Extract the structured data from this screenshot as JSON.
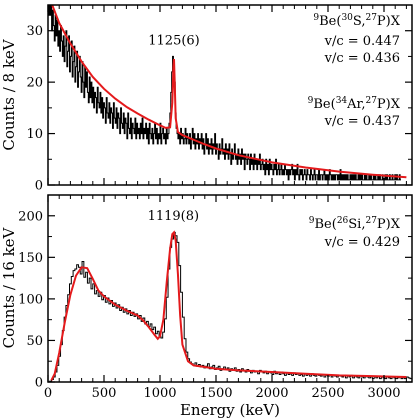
{
  "chart_data": [
    {
      "type": "line",
      "panel": "top",
      "xlim": [
        0,
        3250
      ],
      "ylim": [
        0,
        35
      ],
      "x_ticks": [
        0,
        500,
        1000,
        1500,
        2000,
        2500,
        3000
      ],
      "x_tick_labels": [
        "",
        "",
        "",
        "",
        "",
        "",
        ""
      ],
      "y_ticks": [
        0,
        10,
        20,
        30
      ],
      "y_tick_labels": [
        "0",
        "10",
        "20",
        "30"
      ],
      "ylabel": "Counts / 8 keV",
      "xlabel": "",
      "grid": false,
      "peak_label": {
        "text": "1125(6)",
        "x": 1125,
        "y": 25
      },
      "annotation_lines": [
        {
          "html": "<tspan baseline-shift='super' font-size='9'>9</tspan>Be(<tspan baseline-shift='super' font-size='9'>30</tspan>S,<tspan baseline-shift='super' font-size='9'>27</tspan>P)X"
        },
        {
          "text": "v/c = 0.447"
        },
        {
          "text": "v/c = 0.436"
        },
        {
          "html": "<tspan baseline-shift='super' font-size='9'>9</tspan>Be(<tspan baseline-shift='super' font-size='9'>34</tspan>Ar,<tspan baseline-shift='super' font-size='9'>27</tspan>P)X"
        },
        {
          "text": "v/c = 0.437"
        }
      ],
      "fit": {
        "name": "fit",
        "color": "#e41a1c",
        "x": [
          20,
          100,
          200,
          300,
          400,
          500,
          600,
          700,
          800,
          900,
          1000,
          1050,
          1090,
          1110,
          1120,
          1125,
          1130,
          1140,
          1160,
          1200,
          1300,
          1400,
          1500,
          1700,
          2000,
          2300,
          2600,
          2900,
          3200
        ],
        "y": [
          36,
          31.5,
          27.5,
          24,
          21,
          18.7,
          16.8,
          15.2,
          13.9,
          12.7,
          11.6,
          11.1,
          11.2,
          16,
          23,
          24.5,
          21,
          13,
          10.3,
          9.7,
          8.8,
          7.9,
          7.1,
          5.8,
          4.4,
          3.4,
          2.6,
          2.0,
          1.5
        ]
      },
      "histogram": {
        "name": "data",
        "color": "#000000",
        "bin_width": 8,
        "x_start": 0,
        "values": [
          33,
          36,
          33,
          35,
          30,
          34,
          31,
          28,
          33,
          29,
          32,
          27,
          30,
          26,
          31,
          28,
          25,
          29,
          24,
          27,
          30,
          23,
          26,
          29,
          22,
          25,
          28,
          21,
          24,
          27,
          20,
          23,
          26,
          19,
          22,
          25,
          21,
          18,
          24,
          20,
          17,
          23,
          19,
          22,
          18,
          16,
          21,
          17,
          20,
          16,
          19,
          15,
          18,
          17,
          14,
          19,
          16,
          15,
          18,
          14,
          17,
          13,
          16,
          15,
          12,
          17,
          14,
          13,
          16,
          12,
          15,
          14,
          11,
          16,
          13,
          12,
          15,
          11,
          14,
          13,
          10,
          15,
          12,
          11,
          14,
          10,
          13,
          12,
          9,
          14,
          11,
          10,
          13,
          9,
          12,
          11,
          10,
          13,
          9,
          12,
          10,
          11,
          9,
          12,
          10,
          13,
          9,
          11,
          10,
          12,
          9,
          11,
          8,
          12,
          10,
          9,
          11,
          8,
          10,
          12,
          9,
          11,
          8,
          10,
          9,
          12,
          8,
          10,
          11,
          9,
          10,
          8,
          11,
          9,
          10,
          12,
          14,
          18,
          22,
          25,
          24,
          20,
          14,
          11,
          10,
          9,
          10,
          8,
          11,
          9,
          10,
          8,
          9,
          11,
          8,
          10,
          9,
          8,
          10,
          7,
          9,
          11,
          8,
          10,
          7,
          9,
          8,
          10,
          7,
          9,
          8,
          10,
          7,
          9,
          6,
          8,
          10,
          7,
          9,
          6,
          8,
          7,
          9,
          6,
          8,
          7,
          10,
          6,
          8,
          7,
          5,
          8,
          6,
          7,
          9,
          6,
          7,
          5,
          8,
          6,
          7,
          5,
          8,
          6,
          4,
          7,
          5,
          6,
          8,
          5,
          6,
          4,
          7,
          5,
          6,
          4,
          7,
          5,
          6,
          3,
          6,
          5,
          4,
          6,
          5,
          3,
          6,
          4,
          5,
          3,
          6,
          4,
          5,
          3,
          5,
          4,
          6,
          3,
          4,
          5,
          3,
          4,
          2,
          5,
          3,
          4,
          2,
          5,
          3,
          4,
          3,
          2,
          4,
          3,
          5,
          2,
          3,
          4,
          2,
          3,
          4,
          2,
          3,
          2,
          4,
          3,
          2,
          3,
          1,
          3,
          2,
          3,
          4,
          2,
          3,
          1,
          3,
          2,
          4,
          2,
          1,
          3,
          2,
          3,
          1,
          2,
          3,
          2,
          1,
          3,
          2,
          2,
          1,
          3,
          2,
          1,
          2,
          3,
          1,
          2,
          2,
          1,
          3,
          1,
          2,
          2,
          1,
          2,
          3,
          1,
          2,
          1,
          2,
          1,
          3,
          2,
          1,
          2,
          1,
          2,
          1,
          2,
          2,
          1,
          2,
          1,
          3,
          1,
          2,
          1,
          2,
          1,
          2,
          1,
          2,
          1,
          1,
          2,
          1,
          2,
          1,
          2,
          1,
          2,
          1,
          1,
          2,
          1,
          2,
          1,
          2,
          1,
          1,
          2,
          1,
          2,
          1,
          1,
          2,
          1,
          2,
          1,
          1,
          2,
          1,
          2,
          1,
          1,
          2,
          1,
          2,
          1,
          1,
          2,
          1,
          1,
          2,
          1,
          2,
          1,
          1,
          2,
          1,
          1,
          2,
          1,
          1,
          2,
          1,
          2,
          1,
          1,
          2,
          1
        ]
      }
    },
    {
      "type": "line",
      "panel": "bottom",
      "xlim": [
        0,
        3250
      ],
      "ylim": [
        0,
        225
      ],
      "x_ticks": [
        0,
        500,
        1000,
        1500,
        2000,
        2500,
        3000
      ],
      "x_tick_labels": [
        "0",
        "500",
        "1000",
        "1500",
        "2000",
        "2500",
        "3000"
      ],
      "y_ticks": [
        0,
        50,
        100,
        150,
        200
      ],
      "y_tick_labels": [
        "0",
        "50",
        "100",
        "150",
        "200"
      ],
      "ylabel": "Counts / 16 keV",
      "xlabel": "Energy (keV)",
      "grid": false,
      "peak_label": {
        "text": "1119(8)",
        "x": 1119,
        "y": 185
      },
      "annotation_lines": [
        {
          "html": "<tspan baseline-shift='super' font-size='9'>9</tspan>Be(<tspan baseline-shift='super' font-size='9'>26</tspan>Si,<tspan baseline-shift='super' font-size='9'>27</tspan>P)X"
        },
        {
          "text": "v/c = 0.429"
        }
      ],
      "fit": {
        "name": "fit",
        "color": "#e41a1c",
        "x": [
          30,
          60,
          100,
          150,
          200,
          250,
          300,
          350,
          400,
          450,
          500,
          600,
          700,
          800,
          850,
          900,
          950,
          980,
          1000,
          1030,
          1060,
          1090,
          1110,
          1125,
          1140,
          1160,
          1180,
          1200,
          1250,
          1300,
          1400,
          1500,
          1700,
          2000,
          2300,
          2600,
          2900,
          3200
        ],
        "y": [
          2,
          10,
          35,
          72,
          105,
          128,
          138,
          137,
          124,
          110,
          103,
          93,
          86,
          80,
          74,
          66,
          57,
          52,
          55,
          75,
          120,
          160,
          178,
          180,
          170,
          130,
          80,
          45,
          25,
          20,
          18,
          16,
          14,
          12,
          10,
          8,
          7,
          6
        ]
      },
      "histogram": {
        "name": "data",
        "color": "#000000",
        "bin_width": 16,
        "x_start": 0,
        "values": [
          0,
          1,
          3,
          6,
          12,
          20,
          31,
          45,
          62,
          78,
          92,
          105,
          118,
          127,
          134,
          136,
          141,
          138,
          130,
          145,
          126,
          132,
          119,
          125,
          112,
          118,
          106,
          110,
          103,
          108,
          99,
          104,
          96,
          101,
          94,
          98,
          91,
          95,
          89,
          93,
          86,
          90,
          84,
          88,
          82,
          86,
          80,
          84,
          79,
          82,
          76,
          80,
          73,
          77,
          70,
          73,
          67,
          70,
          63,
          66,
          58,
          61,
          55,
          53,
          60,
          76,
          102,
          136,
          162,
          172,
          180,
          176,
          168,
          140,
          108,
          78,
          52,
          36,
          28,
          24,
          22,
          20,
          23,
          19,
          21,
          18,
          20,
          17,
          19,
          22,
          16,
          18,
          20,
          15,
          17,
          19,
          14,
          16,
          18,
          15,
          17,
          13,
          16,
          14,
          17,
          13,
          15,
          12,
          16,
          14,
          12,
          15,
          13,
          11,
          14,
          12,
          13,
          10,
          14,
          12,
          11,
          13,
          10,
          12,
          11,
          9,
          13,
          10,
          11,
          9,
          12,
          10,
          8,
          11,
          9,
          10,
          8,
          11,
          9,
          10,
          8,
          9,
          7,
          10,
          8,
          9,
          7,
          10,
          8,
          7,
          9,
          8,
          7,
          9,
          6,
          8,
          7,
          9,
          6,
          8,
          7,
          6,
          8,
          7,
          6,
          8,
          5,
          7,
          6,
          8,
          5,
          7,
          6,
          5,
          7,
          6,
          5,
          7,
          6,
          5,
          6,
          4,
          6,
          5,
          7,
          4,
          6,
          5,
          4,
          6,
          5,
          4,
          6,
          5,
          4,
          5,
          6,
          4,
          5,
          4,
          6,
          5,
          4
        ]
      }
    }
  ]
}
